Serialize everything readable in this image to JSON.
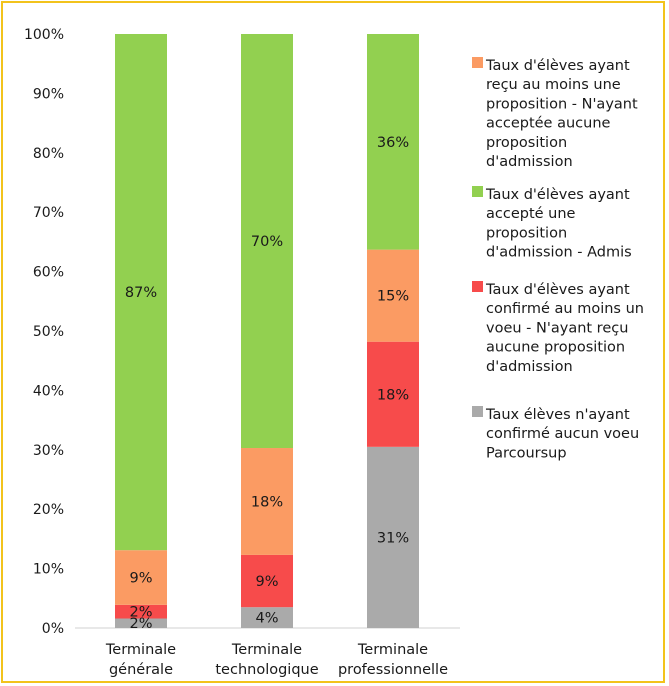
{
  "chart_data": {
    "type": "bar",
    "stacked": true,
    "categories": [
      [
        "Terminale",
        "générale"
      ],
      [
        "Terminale",
        "technologique"
      ],
      [
        "Terminale",
        "professionnelle"
      ]
    ],
    "ylim": [
      0,
      100
    ],
    "yticks": [
      "0%",
      "10%",
      "20%",
      "30%",
      "40%",
      "50%",
      "60%",
      "70%",
      "80%",
      "90%",
      "100%"
    ],
    "grid": false,
    "legend_position": "right",
    "series": [
      {
        "name": [
          "Taux élèves n'ayant",
          "confirmé aucun voeu",
          "Parcoursup"
        ],
        "color": "#aaaaaa",
        "values": [
          1.6,
          3.5,
          30.5
        ],
        "labels": [
          "2%",
          "4%",
          "31%"
        ]
      },
      {
        "name": [
          "Taux d'élèves ayant",
          "confirmé au moins un",
          "voeu - N'ayant reçu",
          "aucune proposition",
          "d'admission"
        ],
        "color": "#f74b4b",
        "values": [
          2.3,
          8.8,
          17.7
        ],
        "labels": [
          "2%",
          "9%",
          "18%"
        ]
      },
      {
        "name": [
          "Taux d'élèves ayant",
          "reçu au moins une",
          "proposition - N'ayant",
          "acceptée aucune",
          "proposition",
          "d'admission"
        ],
        "color": "#fb9b63",
        "values": [
          9.2,
          18.0,
          15.5
        ],
        "labels": [
          "9%",
          "18%",
          "15%"
        ]
      },
      {
        "name": [
          "Taux d'élèves ayant",
          "accepté une",
          "proposition",
          "d'admission - Admis"
        ],
        "color": "#92d050",
        "values": [
          86.9,
          69.7,
          36.3
        ],
        "labels": [
          "87%",
          "70%",
          "36%"
        ]
      }
    ],
    "legend_order": [
      2,
      3,
      1,
      0
    ]
  }
}
